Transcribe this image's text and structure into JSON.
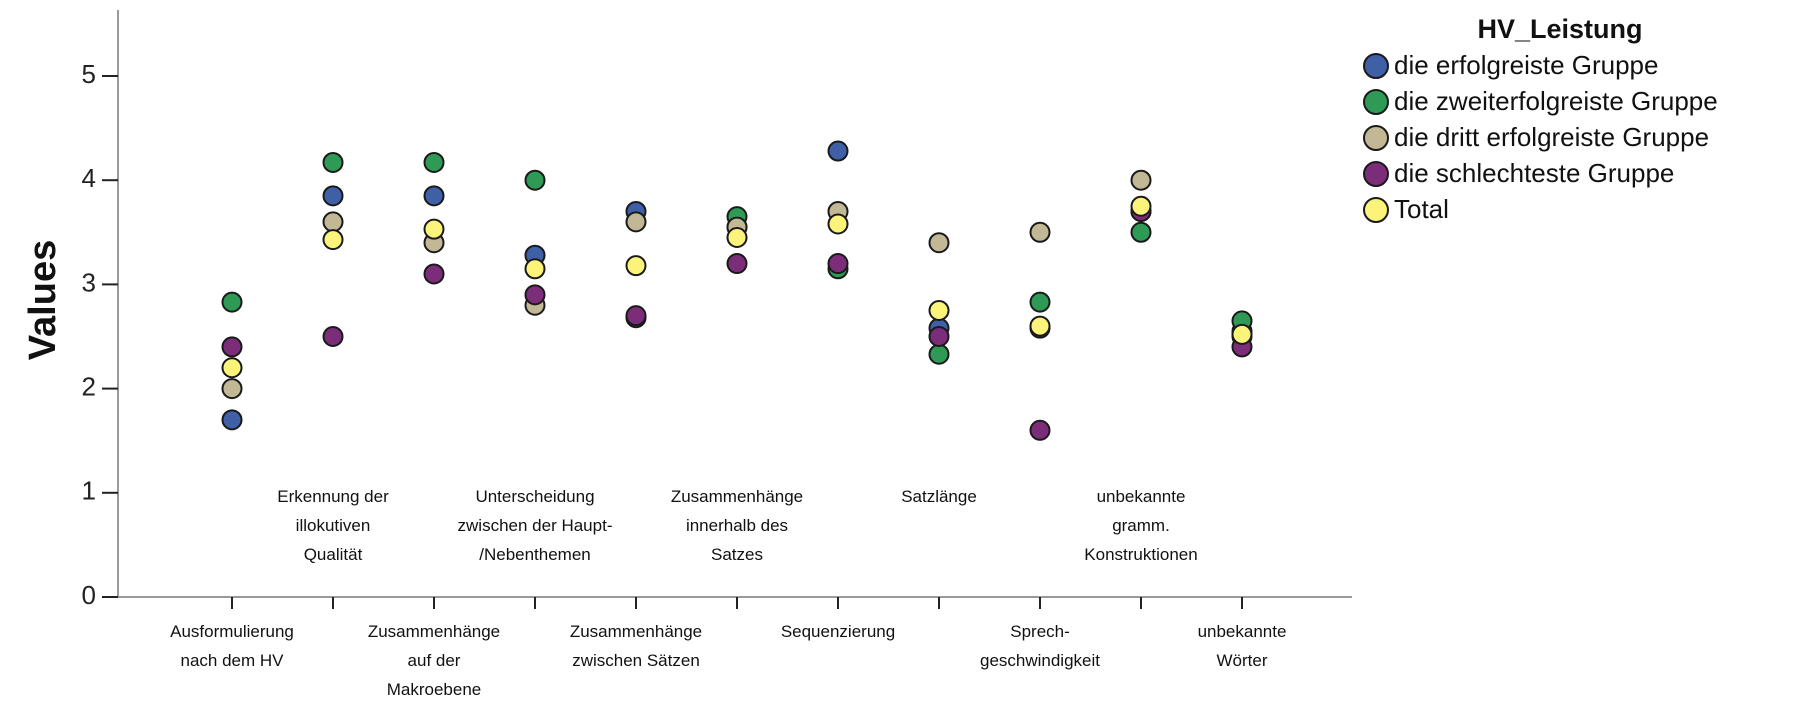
{
  "chart_data": {
    "type": "scatter",
    "ylabel": "Values",
    "xlabel": "",
    "ylim": [
      0,
      5.5
    ],
    "yticks": [
      "0",
      "1",
      "2",
      "3",
      "4",
      "5"
    ],
    "legend": {
      "title": "HV_Leistung",
      "placement": "top-right"
    },
    "categories": [
      [
        "Ausformulierung",
        "nach dem HV"
      ],
      [
        "Erkennung der",
        "illokutiven",
        "Qualität"
      ],
      [
        "Zusammenhänge",
        "auf der",
        "Makroebene"
      ],
      [
        "Unterscheidung",
        "zwischen der Haupt-",
        "/Nebenthemen"
      ],
      [
        "Zusammenhänge",
        "zwischen Sätzen"
      ],
      [
        "Zusammenhänge",
        "innerhalb des",
        "Satzes"
      ],
      [
        "Sequenzierung"
      ],
      [
        "Satzlänge"
      ],
      [
        "Sprech-",
        "geschwindigkeit"
      ],
      [
        "unbekannte",
        "gramm.",
        "Konstruktionen"
      ],
      [
        "unbekannte",
        "Wörter"
      ]
    ],
    "series": [
      {
        "name": "die erfolgreiste Gruppe",
        "color": "#3f5fa6",
        "values": [
          1.7,
          3.85,
          3.85,
          3.28,
          3.7,
          3.55,
          4.28,
          2.58,
          2.58,
          3.7,
          2.55
        ]
      },
      {
        "name": "die zweiterfolgreiste Gruppe",
        "color": "#2e9a56",
        "values": [
          2.83,
          4.17,
          4.17,
          4.0,
          2.68,
          3.65,
          3.15,
          2.33,
          2.83,
          3.5,
          2.65
        ]
      },
      {
        "name": "die dritt erfolgreiste Gruppe",
        "color": "#c3b896",
        "values": [
          2.0,
          3.6,
          3.4,
          2.8,
          3.6,
          3.55,
          3.7,
          3.4,
          3.5,
          4.0,
          2.5
        ]
      },
      {
        "name": "die schlechteste Gruppe",
        "color": "#7c2d7a",
        "values": [
          2.4,
          2.5,
          3.1,
          2.9,
          2.7,
          3.2,
          3.2,
          2.5,
          1.6,
          3.7,
          2.4
        ]
      },
      {
        "name": "Total",
        "color": "#fbf37a",
        "values": [
          2.2,
          3.43,
          3.53,
          3.15,
          3.18,
          3.45,
          3.58,
          2.75,
          2.6,
          3.75,
          2.52
        ]
      }
    ]
  }
}
